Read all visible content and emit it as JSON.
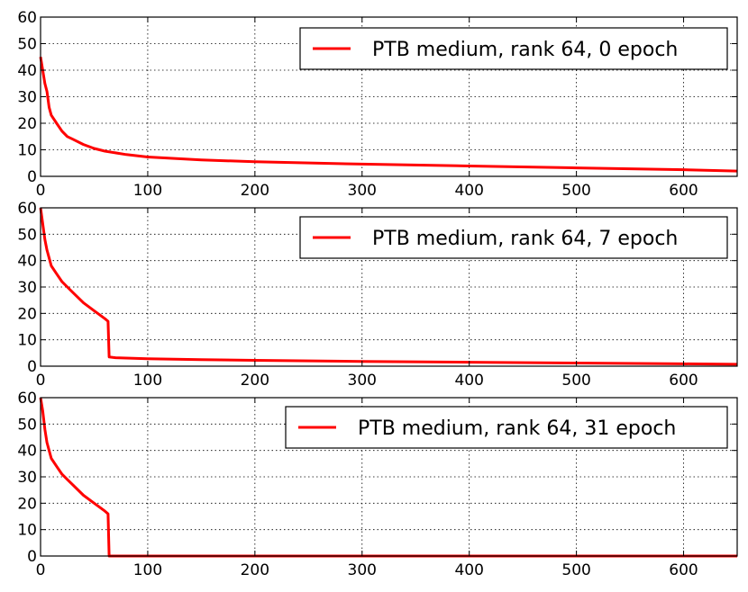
{
  "chart_data": [
    {
      "type": "line",
      "xlim": [
        0,
        650
      ],
      "ylim": [
        0,
        60
      ],
      "xticks": [
        "0",
        "100",
        "200",
        "300",
        "400",
        "500",
        "600"
      ],
      "yticks": [
        "0",
        "10",
        "20",
        "30",
        "40",
        "50",
        "60"
      ],
      "grid": true,
      "legend_position": "top-right",
      "series": [
        {
          "name": "PTB medium, rank 64, 0 epoch",
          "color": "#ff0000",
          "x": [
            0,
            2,
            4,
            6,
            8,
            10,
            15,
            20,
            25,
            30,
            40,
            50,
            60,
            80,
            100,
            150,
            200,
            300,
            400,
            500,
            600,
            650
          ],
          "y": [
            45,
            40,
            35,
            32,
            26,
            23,
            20,
            17,
            15,
            14,
            12,
            10.5,
            9.5,
            8.2,
            7.3,
            6.2,
            5.5,
            4.6,
            3.9,
            3.2,
            2.5,
            2.0
          ]
        }
      ]
    },
    {
      "type": "line",
      "xlim": [
        0,
        650
      ],
      "ylim": [
        0,
        60
      ],
      "xticks": [
        "0",
        "100",
        "200",
        "300",
        "400",
        "500",
        "600"
      ],
      "yticks": [
        "0",
        "10",
        "20",
        "30",
        "40",
        "50",
        "60"
      ],
      "grid": true,
      "legend_position": "top-right",
      "series": [
        {
          "name": "PTB medium, rank 64, 7 epoch",
          "color": "#ff0000",
          "x": [
            0,
            2,
            4,
            6,
            8,
            10,
            15,
            20,
            25,
            30,
            40,
            50,
            60,
            63,
            64,
            70,
            100,
            150,
            200,
            300,
            400,
            500,
            600,
            650
          ],
          "y": [
            60,
            54,
            48,
            44,
            41,
            38,
            35,
            32,
            30,
            28,
            24,
            21,
            18,
            17,
            3.5,
            3.2,
            2.8,
            2.5,
            2.2,
            1.8,
            1.5,
            1.2,
            0.9,
            0.7
          ]
        }
      ]
    },
    {
      "type": "line",
      "xlim": [
        0,
        650
      ],
      "ylim": [
        0,
        60
      ],
      "xticks": [
        "0",
        "100",
        "200",
        "300",
        "400",
        "500",
        "600"
      ],
      "yticks": [
        "0",
        "10",
        "20",
        "30",
        "40",
        "50",
        "60"
      ],
      "grid": true,
      "legend_position": "top-right",
      "series": [
        {
          "name": "PTB medium, rank 64, 31 epoch",
          "color": "#ff0000",
          "x": [
            0,
            2,
            4,
            6,
            8,
            10,
            15,
            20,
            25,
            30,
            40,
            50,
            60,
            63,
            64,
            100,
            200,
            300,
            400,
            500,
            600,
            650
          ],
          "y": [
            60,
            55,
            48,
            43,
            40,
            37,
            34,
            31,
            29,
            27,
            23,
            20,
            17,
            16,
            0,
            0,
            0,
            0,
            0,
            0,
            0,
            0
          ]
        }
      ]
    }
  ]
}
